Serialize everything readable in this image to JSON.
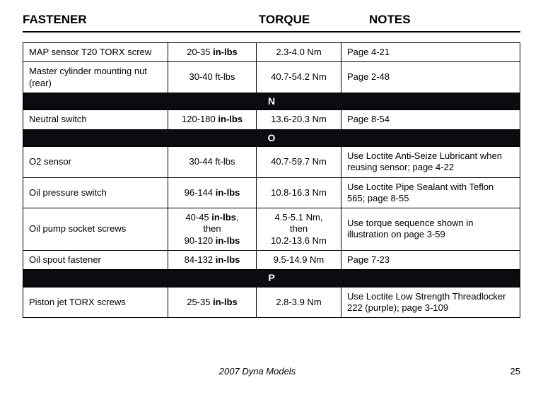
{
  "headers": {
    "fastener": "FASTENER",
    "torque": "TORQUE",
    "notes": "NOTES"
  },
  "colors": {
    "section_bg": "#0b0b10",
    "section_fg": "#ffffff",
    "border": "#000000",
    "page_bg": "#ffffff",
    "text": "#000000"
  },
  "rows": [
    {
      "type": "row",
      "fastener": "MAP sensor T20 TORX screw",
      "torque_imp_pre": "20-35 ",
      "torque_imp_bold": "in-lbs",
      "torque_imp_post": "",
      "torque_nm": "2.3-4.0 Nm",
      "notes": "Page 4-21"
    },
    {
      "type": "row",
      "fastener": "Master cylinder mounting nut (rear)",
      "torque_imp_pre": "30-40 ft-lbs",
      "torque_imp_bold": "",
      "torque_imp_post": "",
      "torque_nm": "40.7-54.2 Nm",
      "notes": "Page 2-48"
    },
    {
      "type": "section",
      "label": "N"
    },
    {
      "type": "row",
      "fastener": "Neutral switch",
      "torque_imp_pre": "120-180 ",
      "torque_imp_bold": "in-lbs",
      "torque_imp_post": "",
      "torque_nm": "13.6-20.3 Nm",
      "notes": "Page 8-54"
    },
    {
      "type": "section",
      "label": "O"
    },
    {
      "type": "row",
      "fastener": "O2 sensor",
      "torque_imp_pre": "30-44 ft-lbs",
      "torque_imp_bold": "",
      "torque_imp_post": "",
      "torque_nm": "40.7-59.7 Nm",
      "notes": "Use Loctite Anti-Seize Lubricant when reusing sensor; page 4-22"
    },
    {
      "type": "row",
      "fastener": "Oil pressure switch",
      "torque_imp_pre": "96-144 ",
      "torque_imp_bold": "in-lbs",
      "torque_imp_post": "",
      "torque_nm": "10.8-16.3 Nm",
      "notes": "Use Loctite Pipe Sealant with Teflon 565; page 8-55"
    },
    {
      "type": "row",
      "fastener": "Oil pump socket screws",
      "torque_imp_html": "40-45 <b>in-lbs</b>,\nthen\n90-120 <b>in-lbs</b>",
      "torque_nm": "4.5-5.1 Nm,\nthen\n10.2-13.6 Nm",
      "notes": "Use torque sequence shown in illustration on page 3-59"
    },
    {
      "type": "row",
      "fastener": "Oil spout fastener",
      "torque_imp_pre": "84-132 ",
      "torque_imp_bold": "in-lbs",
      "torque_imp_post": "",
      "torque_nm": "9.5-14.9 Nm",
      "notes": "Page 7-23"
    },
    {
      "type": "section",
      "label": "P"
    },
    {
      "type": "row",
      "fastener": "Piston jet TORX screws",
      "torque_imp_pre": "25-35 ",
      "torque_imp_bold": "in-lbs",
      "torque_imp_post": "",
      "torque_nm": "2.8-3.9 Nm",
      "notes": "Use Loctite Low Strength Threadlocker 222 (purple); page 3-109"
    }
  ],
  "footer": {
    "model": "2007 Dyna Models",
    "page": "25"
  }
}
